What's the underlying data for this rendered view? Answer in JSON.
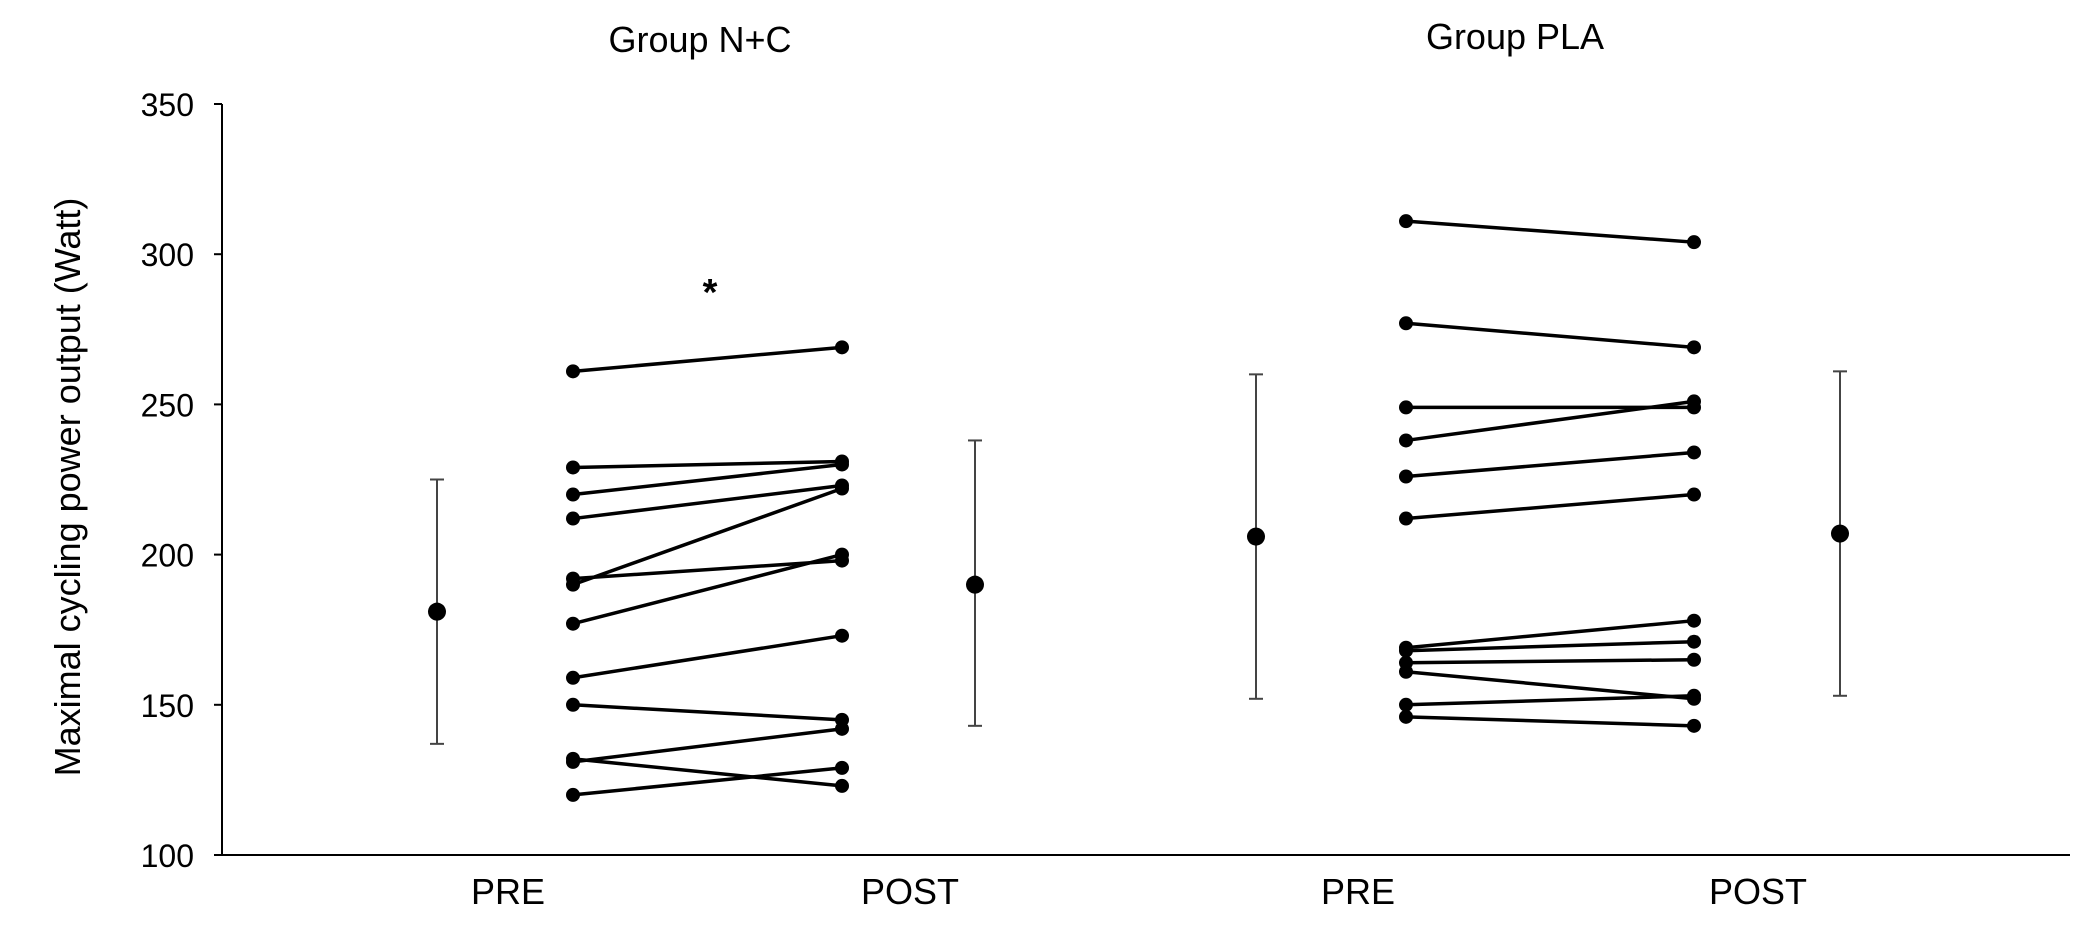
{
  "chart_data": {
    "type": "scatter",
    "ylabel": "Maximal cycling power output (Watt)",
    "ylim": [
      100,
      350
    ],
    "yticks": [
      100,
      150,
      200,
      250,
      300,
      350
    ],
    "grid": false,
    "groups": [
      {
        "title": "Group N+C",
        "pre_label": "PRE",
        "post_label": "POST",
        "significance": "*",
        "pre_mean": {
          "mean": 181,
          "sd_low": 137,
          "sd_high": 225
        },
        "post_mean": {
          "mean": 190,
          "sd_low": 143,
          "sd_high": 238
        },
        "paired": [
          {
            "pre": 261,
            "post": 269
          },
          {
            "pre": 229,
            "post": 231
          },
          {
            "pre": 220,
            "post": 230
          },
          {
            "pre": 212,
            "post": 223
          },
          {
            "pre": 192,
            "post": 198
          },
          {
            "pre": 190,
            "post": 222
          },
          {
            "pre": 177,
            "post": 200
          },
          {
            "pre": 159,
            "post": 173
          },
          {
            "pre": 150,
            "post": 145
          },
          {
            "pre": 132,
            "post": 123
          },
          {
            "pre": 131,
            "post": 142
          },
          {
            "pre": 120,
            "post": 129
          }
        ]
      },
      {
        "title": "Group PLA",
        "pre_label": "PRE",
        "post_label": "POST",
        "significance": "",
        "pre_mean": {
          "mean": 206,
          "sd_low": 152,
          "sd_high": 260
        },
        "post_mean": {
          "mean": 207,
          "sd_low": 153,
          "sd_high": 261
        },
        "paired": [
          {
            "pre": 311,
            "post": 304
          },
          {
            "pre": 277,
            "post": 269
          },
          {
            "pre": 249,
            "post": 249
          },
          {
            "pre": 238,
            "post": 251
          },
          {
            "pre": 226,
            "post": 234
          },
          {
            "pre": 212,
            "post": 220
          },
          {
            "pre": 169,
            "post": 178
          },
          {
            "pre": 168,
            "post": 171
          },
          {
            "pre": 164,
            "post": 165
          },
          {
            "pre": 161,
            "post": 152
          },
          {
            "pre": 150,
            "post": 153
          },
          {
            "pre": 146,
            "post": 143
          }
        ]
      }
    ]
  }
}
